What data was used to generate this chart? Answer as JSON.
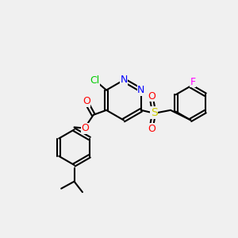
{
  "background_color": "#f0f0f0",
  "atom_colors": {
    "C": "#000000",
    "N": "#0000ff",
    "O": "#ff0000",
    "S": "#cccc00",
    "Cl": "#00cc00",
    "F": "#ff00ff",
    "H": "#000000"
  },
  "bond_color": "#000000",
  "bond_width": 1.5,
  "font_size": 9
}
